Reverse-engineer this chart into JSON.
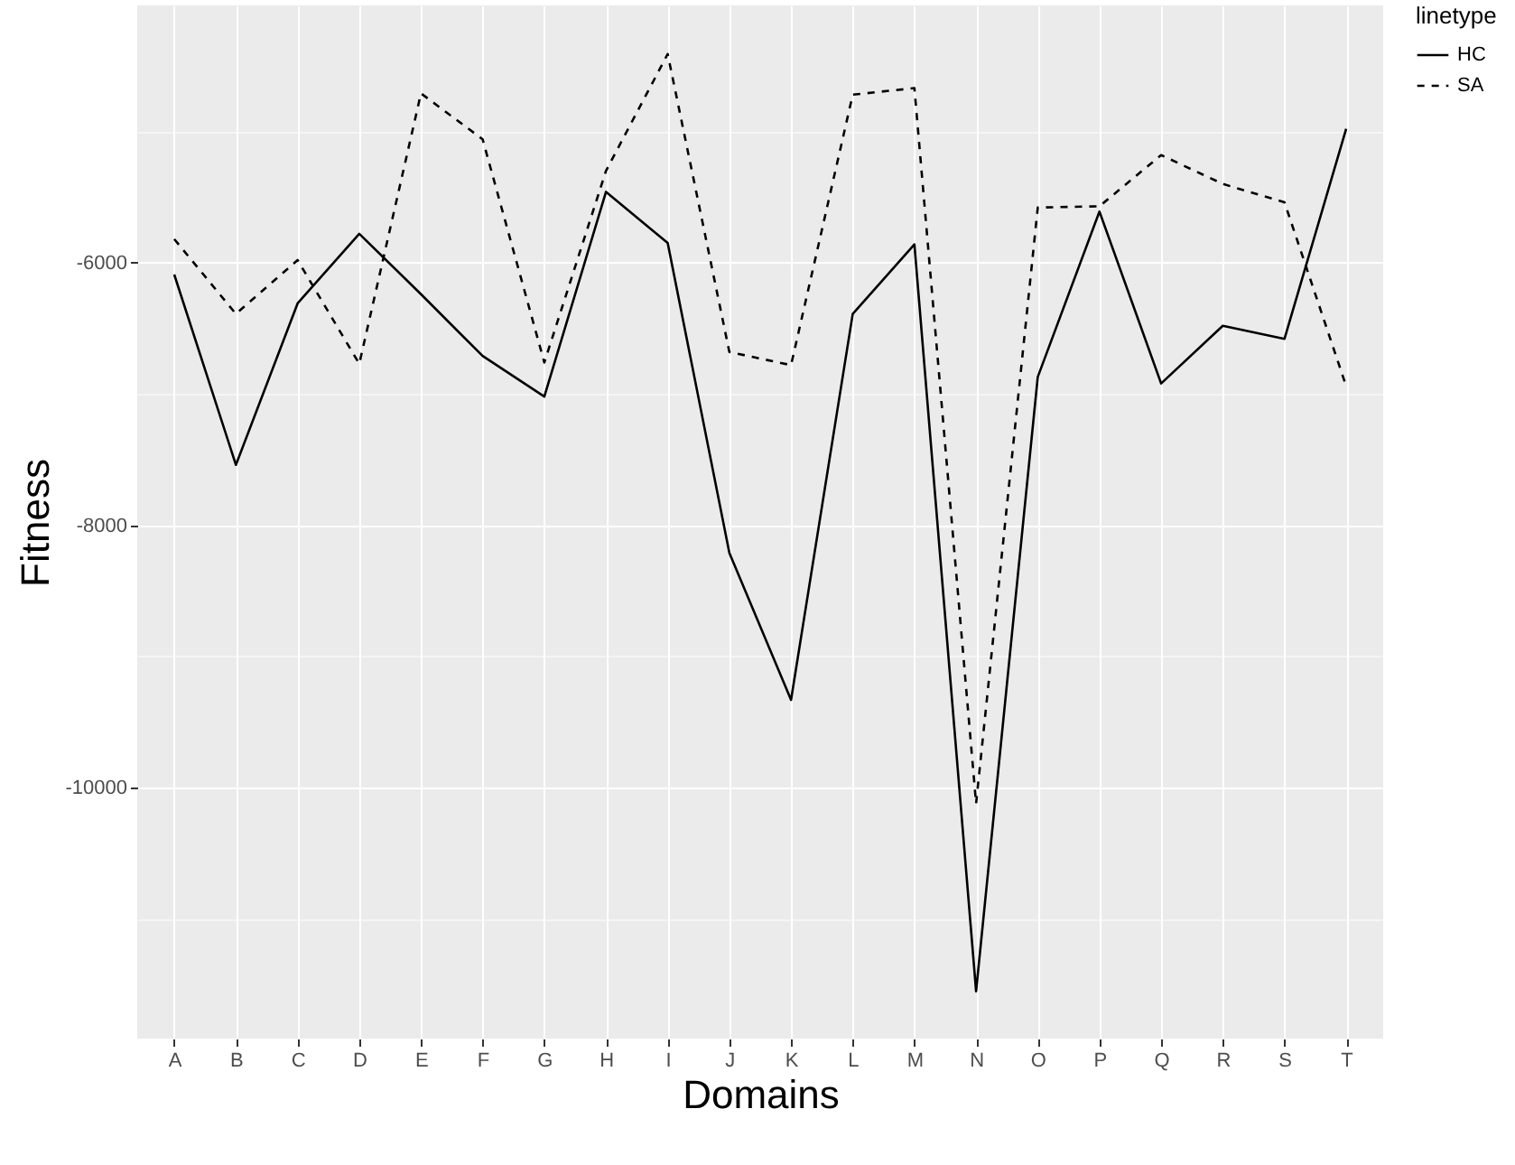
{
  "chart_data": {
    "type": "line",
    "xlabel": "Domains",
    "ylabel": "Fitness",
    "legend_title": "linetype",
    "legend": "right",
    "grid": true,
    "categories": [
      "A",
      "B",
      "C",
      "D",
      "E",
      "F",
      "G",
      "H",
      "I",
      "J",
      "K",
      "L",
      "M",
      "N",
      "O",
      "P",
      "Q",
      "R",
      "S",
      "T"
    ],
    "ylim": [
      -11910,
      -4040
    ],
    "yticks": [
      -6000,
      -8000,
      -10000
    ],
    "series": [
      {
        "name": "HC",
        "color": "#000000",
        "line_style": "solid",
        "values": [
          -6090,
          -7540,
          -6310,
          -5780,
          -6240,
          -6710,
          -7020,
          -5460,
          -5850,
          -8210,
          -9330,
          -6390,
          -5860,
          -11550,
          -6870,
          -5610,
          -6920,
          -6480,
          -6580,
          -4980
        ]
      },
      {
        "name": "SA",
        "color": "#000000",
        "line_style": "dashed",
        "values": [
          -5820,
          -6390,
          -5980,
          -6770,
          -4710,
          -5060,
          -6760,
          -5300,
          -4410,
          -6680,
          -6780,
          -4720,
          -4670,
          -10120,
          -5580,
          -5570,
          -5180,
          -5400,
          -5540,
          -6940
        ]
      }
    ]
  }
}
